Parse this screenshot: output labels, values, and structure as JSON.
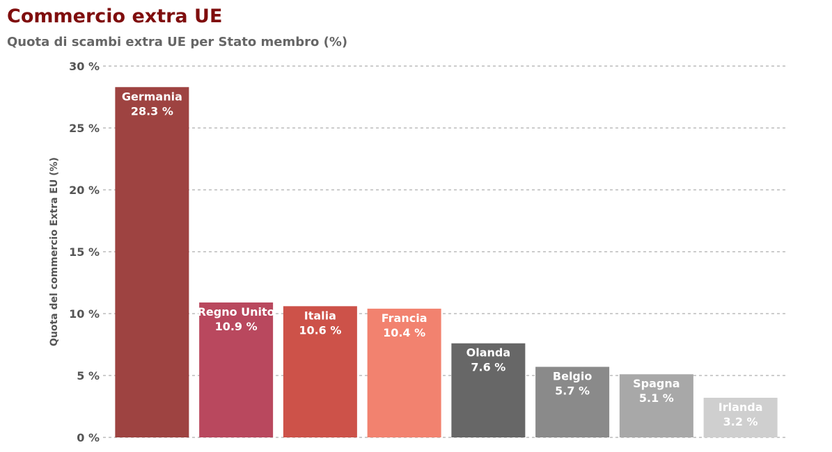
{
  "chart_data": {
    "type": "bar",
    "title": "Commercio extra UE",
    "subtitle": "Quota di scambi extra UE per Stato membro (%)",
    "ylabel": "Quota del commercio Extra EU (%)",
    "xlabel": "",
    "ylim": [
      0,
      30
    ],
    "yticks": [
      0,
      5,
      10,
      15,
      20,
      25,
      30
    ],
    "ytick_labels": [
      "0 %",
      "5 %",
      "10 %",
      "15 %",
      "20 %",
      "25 %",
      "30 %"
    ],
    "grid": true,
    "categories": [
      "Germania",
      "Regno Unito",
      "Italia",
      "Francia",
      "Olanda",
      "Belgio",
      "Spagna",
      "Irlanda"
    ],
    "values": [
      28.3,
      10.9,
      10.6,
      10.4,
      7.6,
      5.7,
      5.1,
      3.2
    ],
    "value_labels": [
      "28.3 %",
      "10.9 %",
      "10.6 %",
      "10.4 %",
      "7.6 %",
      "5.7 %",
      "5.1 %",
      "3.2 %"
    ],
    "colors": [
      "#9e4341",
      "#b9485e",
      "#cd5249",
      "#f2826f",
      "#676767",
      "#8a8a8a",
      "#a8a8a8",
      "#cfcfcf"
    ]
  }
}
